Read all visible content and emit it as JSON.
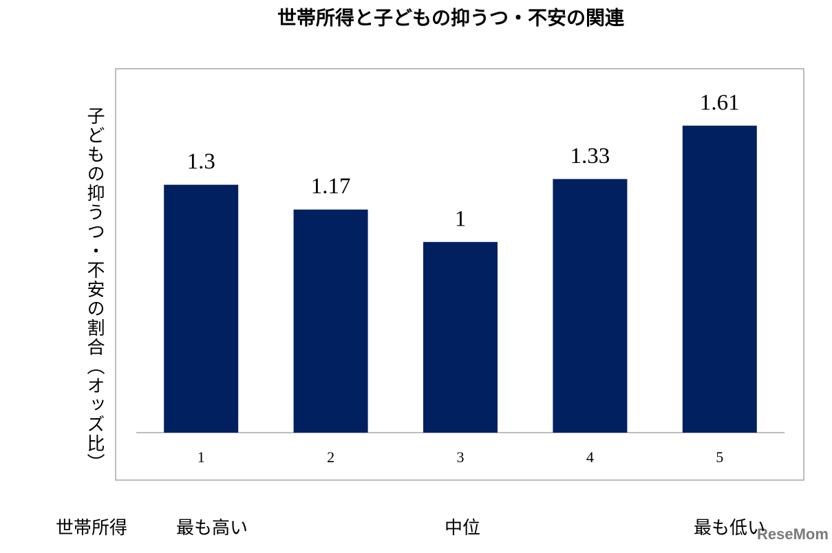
{
  "chart_data": {
    "type": "bar",
    "title": "世帯所得と子どもの抑うつ・不安の関連",
    "y_label": "子どもの抑うつ・不安の割合（オッズ比）",
    "categories": [
      "1",
      "2",
      "3",
      "4",
      "5"
    ],
    "values": [
      1.3,
      1.17,
      1,
      1.33,
      1.61
    ],
    "color": "#002060",
    "ylim": [
      0,
      1.8
    ],
    "annotations": [
      "世帯所得",
      "最も高い",
      "中位",
      "最も低い"
    ],
    "watermark": "ReseMom"
  }
}
